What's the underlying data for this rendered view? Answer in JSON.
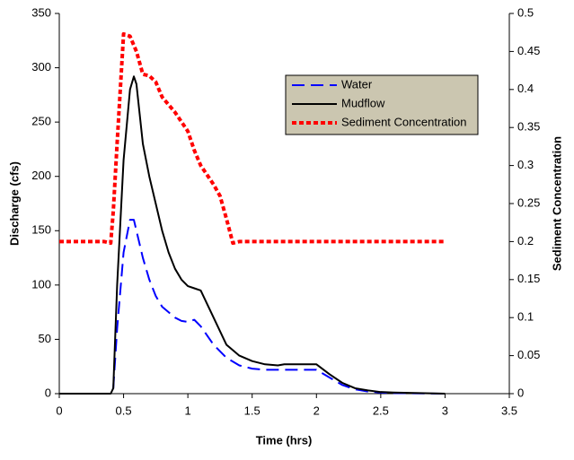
{
  "chart_data": {
    "type": "line",
    "x_label": "Time (hrs)",
    "y_label": "Discharge (cfs)",
    "y2_label": "Sediment Concentration",
    "xlim": [
      0,
      3.5
    ],
    "xticks": [
      0,
      0.5,
      1,
      1.5,
      2,
      2.5,
      3,
      3.5
    ],
    "ylim": [
      0,
      350
    ],
    "yticks": [
      0,
      50,
      100,
      150,
      200,
      250,
      300,
      350
    ],
    "y2lim": [
      0,
      0.5
    ],
    "y2ticks": [
      0,
      0.05,
      0.1,
      0.15,
      0.2,
      0.25,
      0.3,
      0.35,
      0.4,
      0.45,
      0.5
    ],
    "legend": "upper right",
    "series": [
      {
        "name": "Water",
        "color": "#0000ff",
        "dash": "dashed",
        "x": [
          0,
          0.4,
          0.42,
          0.45,
          0.5,
          0.55,
          0.58,
          0.62,
          0.65,
          0.7,
          0.75,
          0.8,
          0.85,
          0.9,
          0.95,
          1.0,
          1.05,
          1.1,
          1.2,
          1.3,
          1.4,
          1.5,
          1.6,
          1.7,
          1.8,
          1.9,
          2.0,
          2.1,
          2.2,
          2.3,
          2.4,
          2.5,
          2.6,
          3.0
        ],
        "values": [
          0,
          0,
          5,
          60,
          130,
          160,
          160,
          140,
          125,
          105,
          90,
          80,
          75,
          70,
          67,
          66,
          68,
          62,
          45,
          33,
          26,
          23,
          22,
          22,
          22,
          22,
          22,
          15,
          8,
          4,
          2,
          1,
          0.5,
          0
        ]
      },
      {
        "name": "Mudflow",
        "color": "#000000",
        "dash": "solid",
        "x": [
          0,
          0.4,
          0.42,
          0.45,
          0.5,
          0.55,
          0.58,
          0.6,
          0.65,
          0.7,
          0.75,
          0.8,
          0.85,
          0.9,
          0.95,
          1.0,
          1.05,
          1.1,
          1.2,
          1.3,
          1.4,
          1.5,
          1.6,
          1.7,
          1.75,
          1.8,
          2.0,
          2.1,
          2.2,
          2.3,
          2.4,
          2.5,
          2.6,
          3.0
        ],
        "values": [
          0,
          0,
          5,
          100,
          215,
          280,
          292,
          285,
          230,
          200,
          175,
          150,
          130,
          115,
          105,
          99,
          97,
          95,
          70,
          45,
          35,
          30,
          27,
          26,
          27,
          27,
          27,
          18,
          10,
          5,
          3,
          1.5,
          1,
          0
        ]
      },
      {
        "name": "Sediment Concentration",
        "color": "#ff0000",
        "dash": "dotted",
        "axis": "y2",
        "x": [
          0,
          0.35,
          0.4,
          0.42,
          0.45,
          0.5,
          0.55,
          0.6,
          0.65,
          0.7,
          0.75,
          0.8,
          0.9,
          1.0,
          1.05,
          1.1,
          1.2,
          1.25,
          1.3,
          1.35,
          1.4,
          3.0
        ],
        "values": [
          0.2,
          0.2,
          0.198,
          0.24,
          0.33,
          0.473,
          0.47,
          0.45,
          0.42,
          0.418,
          0.41,
          0.39,
          0.37,
          0.345,
          0.32,
          0.3,
          0.275,
          0.26,
          0.23,
          0.198,
          0.2,
          0.2
        ]
      }
    ]
  }
}
